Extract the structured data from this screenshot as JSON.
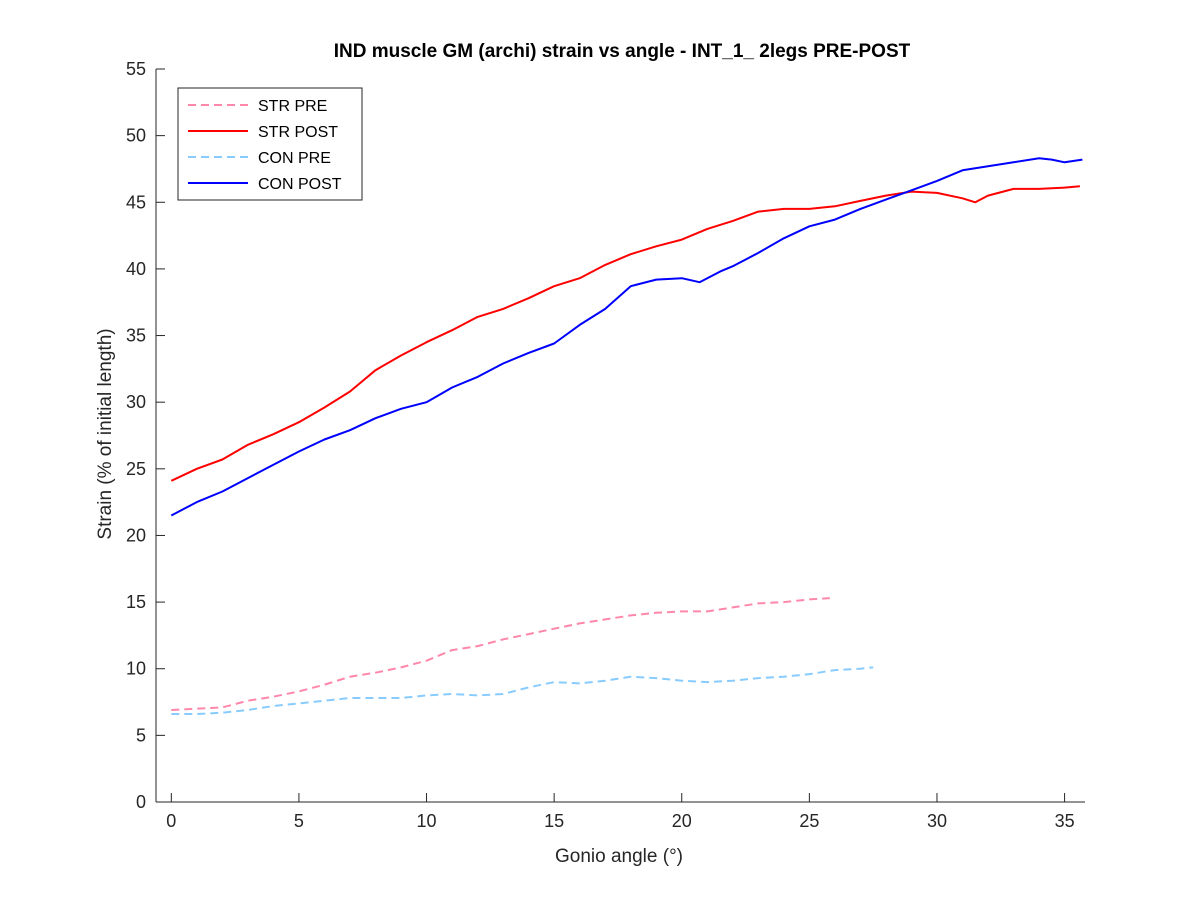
{
  "chart_data": {
    "type": "line",
    "title": "IND muscle GM (archi) strain vs angle - INT_1_ 2legs PRE-POST",
    "xlabel": "Gonio angle (°)",
    "ylabel": "Strain (% of initial length)",
    "xlim": [
      -0.6,
      35.8
    ],
    "ylim": [
      0,
      55
    ],
    "xticks": [
      0,
      5,
      10,
      15,
      20,
      25,
      30,
      35
    ],
    "yticks": [
      0,
      5,
      10,
      15,
      20,
      25,
      30,
      35,
      40,
      45,
      50,
      55
    ],
    "grid": false,
    "legend_position": "top-left",
    "series": [
      {
        "name": "STR PRE",
        "color": "#ff88aa",
        "dash": "dashed",
        "x": [
          0,
          1,
          2,
          3,
          4,
          5,
          6,
          7,
          8,
          9,
          10,
          11,
          12,
          13,
          14,
          15,
          16,
          17,
          18,
          19,
          20,
          21,
          22,
          23,
          24,
          25,
          25.8
        ],
        "y": [
          6.9,
          7.0,
          7.1,
          7.6,
          7.9,
          8.3,
          8.8,
          9.4,
          9.7,
          10.1,
          10.6,
          11.4,
          11.7,
          12.2,
          12.6,
          13.0,
          13.4,
          13.7,
          14.0,
          14.2,
          14.3,
          14.3,
          14.6,
          14.9,
          15.0,
          15.2,
          15.3
        ]
      },
      {
        "name": "STR POST",
        "color": "#ff0000",
        "dash": "solid",
        "x": [
          0,
          1,
          2,
          3,
          4,
          5,
          6,
          7,
          8,
          9,
          10,
          11,
          12,
          13,
          14,
          15,
          16,
          17,
          18,
          19,
          20,
          21,
          22,
          23,
          24,
          25,
          26,
          27,
          28,
          29,
          30,
          31,
          31.5,
          32,
          33,
          34,
          35,
          35.6
        ],
        "y": [
          24.1,
          25.0,
          25.7,
          26.8,
          27.6,
          28.5,
          29.6,
          30.8,
          32.4,
          33.5,
          34.5,
          35.4,
          36.4,
          37.0,
          37.8,
          38.7,
          39.3,
          40.3,
          41.1,
          41.7,
          42.2,
          43.0,
          43.6,
          44.3,
          44.5,
          44.5,
          44.7,
          45.1,
          45.5,
          45.8,
          45.7,
          45.3,
          45.0,
          45.5,
          46.0,
          46.0,
          46.1,
          46.2
        ]
      },
      {
        "name": "CON PRE",
        "color": "#88ccff",
        "dash": "dashed",
        "x": [
          0,
          1,
          2,
          3,
          4,
          5,
          6,
          7,
          8,
          9,
          10,
          11,
          12,
          13,
          14,
          15,
          16,
          17,
          18,
          19,
          20,
          21,
          22,
          23,
          24,
          25,
          26,
          27,
          27.5
        ],
        "y": [
          6.6,
          6.6,
          6.7,
          6.9,
          7.2,
          7.4,
          7.6,
          7.8,
          7.8,
          7.8,
          8.0,
          8.1,
          8.0,
          8.1,
          8.6,
          9.0,
          8.9,
          9.1,
          9.4,
          9.3,
          9.1,
          9.0,
          9.1,
          9.3,
          9.4,
          9.6,
          9.9,
          10.0,
          10.1
        ]
      },
      {
        "name": "CON POST",
        "color": "#0000ff",
        "dash": "solid",
        "x": [
          0,
          1,
          2,
          3,
          4,
          5,
          6,
          7,
          8,
          9,
          10,
          11,
          12,
          13,
          14,
          15,
          16,
          17,
          18,
          19,
          20,
          20.7,
          21.5,
          22,
          23,
          24,
          25,
          26,
          27,
          28,
          29,
          30,
          31,
          32,
          33,
          34,
          34.5,
          35,
          35.7
        ],
        "y": [
          21.5,
          22.5,
          23.3,
          24.3,
          25.3,
          26.3,
          27.2,
          27.9,
          28.8,
          29.5,
          30.0,
          31.1,
          31.9,
          32.9,
          33.7,
          34.4,
          35.8,
          37.0,
          38.7,
          39.2,
          39.3,
          39.0,
          39.8,
          40.2,
          41.2,
          42.3,
          43.2,
          43.7,
          44.5,
          45.2,
          45.9,
          46.6,
          47.4,
          47.7,
          48.0,
          48.3,
          48.2,
          48.0,
          48.2
        ]
      }
    ]
  }
}
